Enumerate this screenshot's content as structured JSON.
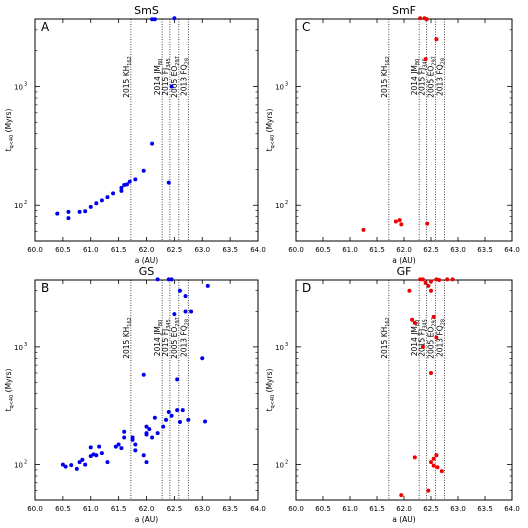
{
  "chart_data": [
    {
      "type": "scatter",
      "panel_letter": "A",
      "title": "SmS",
      "xlabel": "a (AU)",
      "ylabel_main": "t",
      "ylabel_sub": "q<40",
      "ylabel_tail": " (Myrs)",
      "xlim": [
        60.0,
        64.0
      ],
      "ylim": [
        50,
        3700
      ],
      "yscale": "log",
      "x_ticks": [
        "60.0",
        "60.5",
        "61.0",
        "61.5",
        "62.0",
        "62.5",
        "63.0",
        "63.5",
        "64.0"
      ],
      "y_ticks": [
        {
          "label": "10",
          "exp": "2",
          "value": 100
        },
        {
          "label": "10",
          "exp": "3",
          "value": 1000
        }
      ],
      "point_color": "#0000ee",
      "points": [
        [
          60.4,
          85
        ],
        [
          60.6,
          88
        ],
        [
          60.6,
          78
        ],
        [
          60.8,
          88
        ],
        [
          60.9,
          89
        ],
        [
          61.0,
          97
        ],
        [
          61.1,
          104
        ],
        [
          61.2,
          110
        ],
        [
          61.3,
          117
        ],
        [
          61.4,
          126
        ],
        [
          61.55,
          132
        ],
        [
          61.55,
          140
        ],
        [
          61.6,
          148
        ],
        [
          61.65,
          150
        ],
        [
          61.7,
          158
        ],
        [
          61.8,
          165
        ],
        [
          61.95,
          195
        ],
        [
          62.1,
          330
        ],
        [
          62.1,
          3680
        ],
        [
          62.15,
          3680
        ],
        [
          62.4,
          155
        ],
        [
          62.45,
          1000
        ],
        [
          62.5,
          3750
        ]
      ],
      "objects": [
        {
          "name": "2015 KH",
          "sub": "162",
          "a": 61.72
        },
        {
          "name": "2014 JM",
          "sub": "80",
          "a": 62.28
        },
        {
          "name": "2015 FJ",
          "sub": "345",
          "a": 62.42
        },
        {
          "name": "2005 EO",
          "sub": "297",
          "a": 62.58
        },
        {
          "name": "2013 FQ",
          "sub": "28",
          "a": 62.75
        }
      ]
    },
    {
      "type": "scatter",
      "panel_letter": "C",
      "title": "SmF",
      "xlabel": "a (AU)",
      "ylabel_main": "t",
      "ylabel_sub": "q<40",
      "ylabel_tail": " (Myrs)",
      "xlim": [
        60.0,
        64.0
      ],
      "ylim": [
        50,
        3700
      ],
      "yscale": "log",
      "x_ticks": [
        "60.0",
        "60.5",
        "61.0",
        "61.5",
        "62.0",
        "62.5",
        "63.0",
        "63.5",
        "64.0"
      ],
      "y_ticks": [
        {
          "label": "10",
          "exp": "2",
          "value": 100
        },
        {
          "label": "10",
          "exp": "3",
          "value": 1000
        }
      ],
      "point_color": "#ee0000",
      "points": [
        [
          61.25,
          62
        ],
        [
          61.85,
          73
        ],
        [
          61.92,
          75
        ],
        [
          61.95,
          69
        ],
        [
          62.3,
          3750
        ],
        [
          62.38,
          3750
        ],
        [
          62.42,
          3680
        ],
        [
          62.4,
          1700
        ],
        [
          62.43,
          70
        ],
        [
          62.6,
          2500
        ]
      ],
      "objects": [
        {
          "name": "2015 KH",
          "sub": "162",
          "a": 61.72
        },
        {
          "name": "2014 JM",
          "sub": "80",
          "a": 62.28
        },
        {
          "name": "2015 FJ",
          "sub": "345",
          "a": 62.42
        },
        {
          "name": "2005 EO",
          "sub": "297",
          "a": 62.58
        },
        {
          "name": "2013 FQ",
          "sub": "28",
          "a": 62.75
        }
      ]
    },
    {
      "type": "scatter",
      "panel_letter": "B",
      "title": "GS",
      "xlabel": "a (AU)",
      "ylabel_main": "t",
      "ylabel_sub": "q<40",
      "ylabel_tail": " (Myrs)",
      "xlim": [
        60.0,
        64.0
      ],
      "ylim": [
        50,
        3700
      ],
      "yscale": "log",
      "x_ticks": [
        "60.0",
        "60.5",
        "61.0",
        "61.5",
        "62.0",
        "62.5",
        "63.0",
        "63.5",
        "64.0"
      ],
      "y_ticks": [
        {
          "label": "10",
          "exp": "2",
          "value": 100
        },
        {
          "label": "10",
          "exp": "3",
          "value": 1000
        }
      ],
      "point_color": "#0000ee",
      "points": [
        [
          60.5,
          100
        ],
        [
          60.55,
          96
        ],
        [
          60.65,
          99
        ],
        [
          60.75,
          92
        ],
        [
          60.8,
          105
        ],
        [
          60.85,
          110
        ],
        [
          60.9,
          100
        ],
        [
          61.0,
          140
        ],
        [
          61.0,
          118
        ],
        [
          61.05,
          122
        ],
        [
          61.1,
          120
        ],
        [
          61.15,
          142
        ],
        [
          61.2,
          125
        ],
        [
          61.3,
          105
        ],
        [
          61.45,
          142
        ],
        [
          61.5,
          148
        ],
        [
          61.55,
          138
        ],
        [
          61.6,
          170
        ],
        [
          61.6,
          190
        ],
        [
          61.75,
          170
        ],
        [
          61.75,
          162
        ],
        [
          61.8,
          148
        ],
        [
          61.8,
          132
        ],
        [
          61.95,
          580
        ],
        [
          62.0,
          210
        ],
        [
          62.0,
          185
        ],
        [
          62.0,
          180
        ],
        [
          62.05,
          200
        ],
        [
          62.1,
          170
        ],
        [
          62.15,
          250
        ],
        [
          62.2,
          185
        ],
        [
          62.3,
          210
        ],
        [
          62.35,
          240
        ],
        [
          62.4,
          280
        ],
        [
          62.45,
          260
        ],
        [
          62.5,
          1900
        ],
        [
          62.55,
          290
        ],
        [
          62.6,
          230
        ],
        [
          62.65,
          290
        ],
        [
          62.6,
          3000
        ],
        [
          62.7,
          2700
        ],
        [
          62.7,
          2000
        ],
        [
          62.75,
          240
        ],
        [
          62.8,
          2000
        ],
        [
          63.0,
          800
        ],
        [
          63.05,
          232
        ],
        [
          63.1,
          3300
        ],
        [
          62.2,
          3750
        ],
        [
          62.4,
          3750
        ],
        [
          62.45,
          3750
        ],
        [
          62.0,
          105
        ],
        [
          61.95,
          120
        ],
        [
          62.55,
          530
        ]
      ],
      "objects": [
        {
          "name": "2015 KH",
          "sub": "162",
          "a": 61.72
        },
        {
          "name": "2014 JM",
          "sub": "80",
          "a": 62.28
        },
        {
          "name": "2015 FJ",
          "sub": "345",
          "a": 62.42
        },
        {
          "name": "2005 EO",
          "sub": "297",
          "a": 62.58
        },
        {
          "name": "2013 FQ",
          "sub": "28",
          "a": 62.75
        }
      ]
    },
    {
      "type": "scatter",
      "panel_letter": "D",
      "title": "GF",
      "xlabel": "a (AU)",
      "ylabel_main": "t",
      "ylabel_sub": "q<40",
      "ylabel_tail": " (Myrs)",
      "xlim": [
        60.0,
        64.0
      ],
      "ylim": [
        50,
        3700
      ],
      "yscale": "log",
      "x_ticks": [
        "60.0",
        "60.5",
        "61.0",
        "61.5",
        "62.0",
        "62.5",
        "63.0",
        "63.5",
        "64.0"
      ],
      "y_ticks": [
        {
          "label": "10",
          "exp": "2",
          "value": 100
        },
        {
          "label": "10",
          "exp": "3",
          "value": 1000
        }
      ],
      "point_color": "#ee0000",
      "points": [
        [
          61.95,
          55
        ],
        [
          62.1,
          3000
        ],
        [
          62.15,
          1700
        ],
        [
          62.2,
          1600
        ],
        [
          62.2,
          115
        ],
        [
          62.3,
          3750
        ],
        [
          62.35,
          3750
        ],
        [
          62.4,
          3500
        ],
        [
          62.35,
          1000
        ],
        [
          62.45,
          3300
        ],
        [
          62.5,
          3600
        ],
        [
          62.5,
          3000
        ],
        [
          62.5,
          600
        ],
        [
          62.5,
          105
        ],
        [
          62.45,
          60
        ],
        [
          62.55,
          1800
        ],
        [
          62.55,
          112
        ],
        [
          62.6,
          3750
        ],
        [
          62.6,
          1200
        ],
        [
          62.6,
          120
        ],
        [
          62.65,
          3700
        ],
        [
          62.62,
          95
        ],
        [
          62.7,
          88
        ],
        [
          62.8,
          3750
        ],
        [
          62.9,
          3750
        ],
        [
          62.55,
          98
        ]
      ],
      "objects": [
        {
          "name": "2015 KH",
          "sub": "162",
          "a": 61.72
        },
        {
          "name": "2014 JM",
          "sub": "80",
          "a": 62.28
        },
        {
          "name": "2015 FJ",
          "sub": "345",
          "a": 62.42
        },
        {
          "name": "2005 EO",
          "sub": "297",
          "a": 62.58
        },
        {
          "name": "2013 FQ",
          "sub": "28",
          "a": 62.75
        }
      ]
    }
  ]
}
